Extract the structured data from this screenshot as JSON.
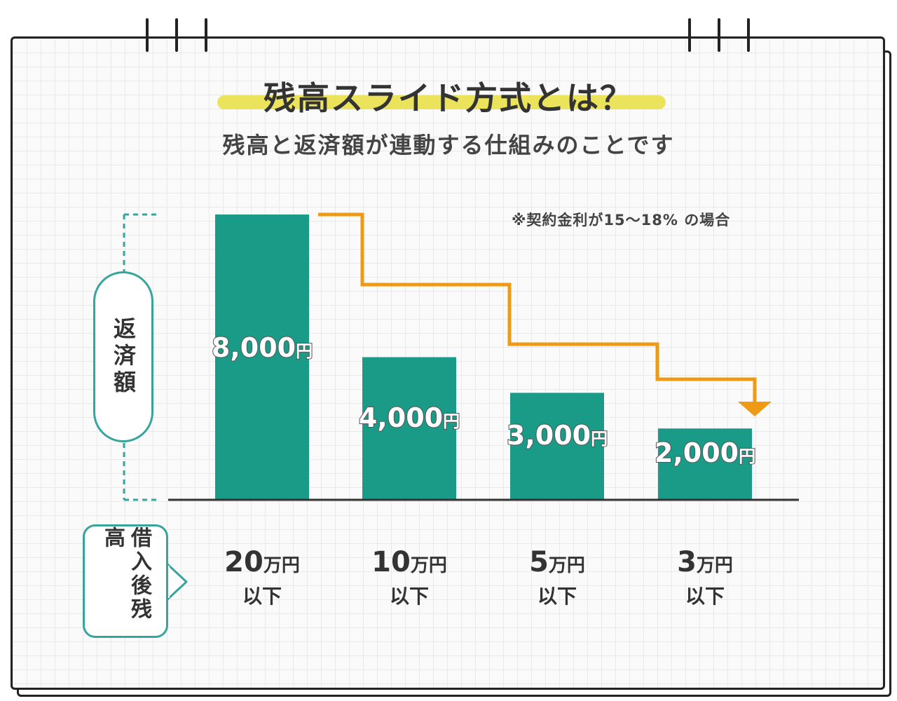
{
  "header": {
    "title": "残高スライド方式とは？",
    "subtitle": "残高と返済額が連動する仕組みのことです"
  },
  "footnote": "※契約金利が15～18% の場合",
  "axis": {
    "y_label": "返済額",
    "x_label": "借入後残高"
  },
  "colors": {
    "bar": "#1a9b87",
    "step_line": "#ee9a14",
    "accent_outline": "#38a59d",
    "title_marker": "#ece35c"
  },
  "chart_data": {
    "type": "bar",
    "categories": [
      "20万円以下",
      "10万円以下",
      "5万円以下",
      "3万円以下"
    ],
    "category_parts": [
      {
        "amount": "20",
        "unit": "万円",
        "suffix": "以下"
      },
      {
        "amount": "10",
        "unit": "万円",
        "suffix": "以下"
      },
      {
        "amount": "5",
        "unit": "万円",
        "suffix": "以下"
      },
      {
        "amount": "3",
        "unit": "万円",
        "suffix": "以下"
      }
    ],
    "values": [
      8000,
      4000,
      3000,
      2000
    ],
    "value_labels": [
      {
        "num": "8,000",
        "unit": "円"
      },
      {
        "num": "4,000",
        "unit": "円"
      },
      {
        "num": "3,000",
        "unit": "円"
      },
      {
        "num": "2,000",
        "unit": "円"
      }
    ],
    "ylim": [
      0,
      8000
    ],
    "xlabel": "借入後残高",
    "ylabel": "返済額",
    "grid": false,
    "trend": "step-down arrow"
  }
}
